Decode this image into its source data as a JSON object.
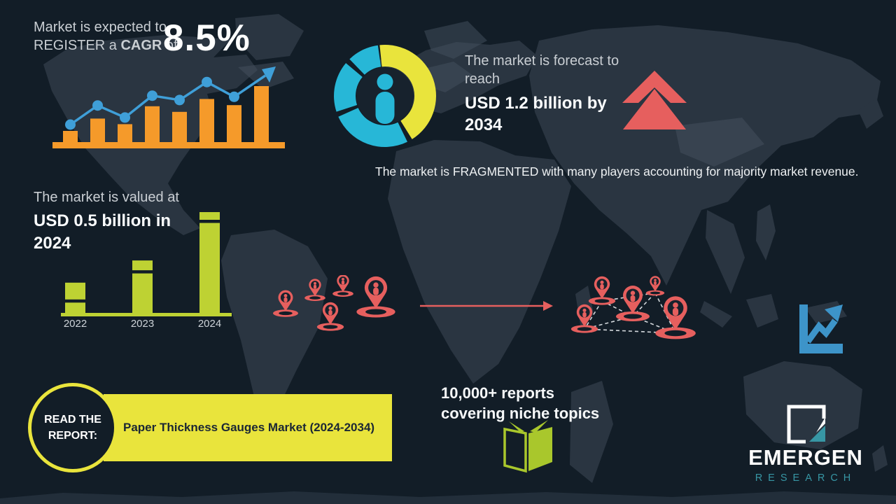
{
  "colors": {
    "background": "#121d27",
    "map": "#2a3541",
    "map_light": "#45525f",
    "orange": "#f59a2a",
    "line_blue": "#3f9fd8",
    "cyan": "#27b7d7",
    "yellow": "#e9e43c",
    "red": "#e65f5e",
    "green": "#bed233",
    "book_green": "#a9c72c",
    "teal": "#3796a4",
    "chart_icon_blue": "#3d94c9",
    "pin_inner_dark": "#17222d"
  },
  "cagr": {
    "line1": "Market is expected to",
    "line2_pre": "REGISTER a ",
    "line2_bold": "CAGR",
    "line2_post": " of",
    "value": "8.5%"
  },
  "forecast": {
    "intro": "The market is forecast to reach",
    "value": "USD 1.2 billion by 2034"
  },
  "fragmented": {
    "text": "The market is FRAGMENTED with many players accounting for majority market revenue."
  },
  "valuation": {
    "intro": "The market is valued at",
    "value": "USD 0.5 billion in 2024"
  },
  "reports": {
    "text": "10,000+ reports covering niche topics"
  },
  "cta": {
    "circle_label": "READ THE REPORT:",
    "banner_label": "Paper Thickness Gauges Market (2024-2034)"
  },
  "logo": {
    "brand": "EMERGEN",
    "division": "RESEARCH"
  },
  "chart_data": [
    {
      "type": "bar+line",
      "name": "market-growth-trend",
      "title": "",
      "categories": [
        "",
        "",
        "",
        "",
        "",
        "",
        "",
        ""
      ],
      "bar_values": [
        20,
        42,
        32,
        64,
        54,
        77,
        66,
        100
      ],
      "series": [
        {
          "name": "trend-line",
          "values": [
            32,
            67,
            45,
            85,
            77,
            110,
            83
          ]
        }
      ],
      "bar_color": "orange",
      "line_color": "line_blue",
      "axes": "decorative, no ticks; rising trend ending in up-right arrow"
    },
    {
      "type": "bar",
      "name": "market-valuation-by-year",
      "categories": [
        "2022",
        "2023",
        "2024"
      ],
      "values_usd_billion": [
        0.15,
        0.26,
        0.5
      ],
      "unit": "USD billion",
      "bar_color": "green",
      "xlabel": "",
      "ylabel": ""
    },
    {
      "type": "pie",
      "name": "market-fragmentation-donut",
      "slices": [
        {
          "label": "leading-share",
          "color": "yellow",
          "start_deg": -6,
          "end_deg": 148
        },
        {
          "label": "other-share-1",
          "color": "cyan",
          "start_deg": 154,
          "end_deg": 246
        },
        {
          "label": "other-share-2",
          "color": "cyan",
          "start_deg": 252,
          "end_deg": 310
        },
        {
          "label": "other-share-3",
          "color": "cyan",
          "start_deg": 316,
          "end_deg": 352
        }
      ],
      "center_icon": "person-icon"
    }
  ]
}
